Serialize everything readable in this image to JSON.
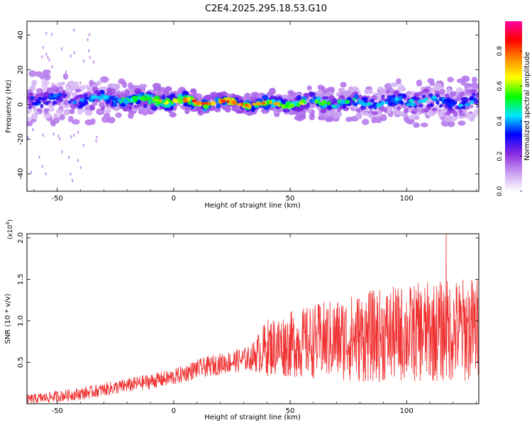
{
  "title": "C2E4.2025.295.18.53.G10",
  "chart_data": [
    {
      "type": "heatmap",
      "xlabel": "Height of straight line (km)",
      "ylabel": "Frequency (Hz)",
      "xlim": [
        -63,
        131
      ],
      "ylim": [
        -50,
        48
      ],
      "xticks": [
        -50,
        0,
        50,
        100
      ],
      "yticks": [
        -40,
        -20,
        0,
        20,
        40
      ],
      "band_center_hz": [
        {
          "x": -60,
          "y": 3
        },
        {
          "x": -40,
          "y": 3
        },
        {
          "x": -20,
          "y": 3
        },
        {
          "x": 0,
          "y": 2
        },
        {
          "x": 20,
          "y": 1
        },
        {
          "x": 40,
          "y": 0
        },
        {
          "x": 60,
          "y": 1
        },
        {
          "x": 80,
          "y": 1
        },
        {
          "x": 100,
          "y": 2
        },
        {
          "x": 130,
          "y": 1
        }
      ],
      "band_halfwidth_hz": [
        {
          "x": -60,
          "y": 10
        },
        {
          "x": -20,
          "y": 7
        },
        {
          "x": 20,
          "y": 3
        },
        {
          "x": 40,
          "y": 4
        },
        {
          "x": 80,
          "y": 7
        },
        {
          "x": 130,
          "y": 9
        }
      ],
      "peak_amplitude": [
        {
          "x": -60,
          "y": 0.35
        },
        {
          "x": -25,
          "y": 0.45
        },
        {
          "x": 0,
          "y": 0.75
        },
        {
          "x": 20,
          "y": 0.92
        },
        {
          "x": 45,
          "y": 0.7
        },
        {
          "x": 80,
          "y": 0.45
        },
        {
          "x": 130,
          "y": 0.4
        }
      ],
      "colorbar": {
        "label": "Normalized spectral amplitude",
        "range": [
          0,
          0.97
        ],
        "ticks": [
          "0.0",
          "0.2",
          "0.4",
          "0.6",
          "0.8"
        ],
        "colors": [
          "#ffffff",
          "#c89cf0",
          "#8a2be2",
          "#0000ff",
          "#00e5ff",
          "#00ff00",
          "#ffff00",
          "#ff8c00",
          "#ff0000",
          "#ff00a0"
        ]
      }
    },
    {
      "type": "line",
      "xlabel": "Height of straight line (km)",
      "ylabel": "SNR (10 * v/v)",
      "y_multiplier": "(x10",
      "y_multiplier_exp": "4",
      "y_multiplier_close": ")",
      "xlim": [
        -63,
        131
      ],
      "ylim": [
        0,
        2.05
      ],
      "xticks": [
        -50,
        0,
        50,
        100
      ],
      "yticks": [
        "0.5",
        "1.0",
        "1.5",
        "2.0"
      ],
      "series": [
        {
          "name": "SNR",
          "color": "#f03030",
          "trend": [
            {
              "x": -63,
              "y": 0.05
            },
            {
              "x": -40,
              "y": 0.12
            },
            {
              "x": -20,
              "y": 0.22
            },
            {
              "x": 0,
              "y": 0.32
            },
            {
              "x": 10,
              "y": 0.42
            },
            {
              "x": 20,
              "y": 0.48
            },
            {
              "x": 33,
              "y": 0.55
            },
            {
              "x": 40,
              "y": 0.68
            },
            {
              "x": 60,
              "y": 0.75
            },
            {
              "x": 80,
              "y": 0.8
            },
            {
              "x": 100,
              "y": 0.85
            },
            {
              "x": 131,
              "y": 0.9
            }
          ],
          "spread": [
            {
              "x": -63,
              "y": 0.06
            },
            {
              "x": 0,
              "y": 0.1
            },
            {
              "x": 33,
              "y": 0.15
            },
            {
              "x": 40,
              "y": 0.35
            },
            {
              "x": 80,
              "y": 0.55
            },
            {
              "x": 131,
              "y": 0.65
            }
          ],
          "peak": {
            "x": 117,
            "y": 2.05
          }
        }
      ]
    }
  ]
}
